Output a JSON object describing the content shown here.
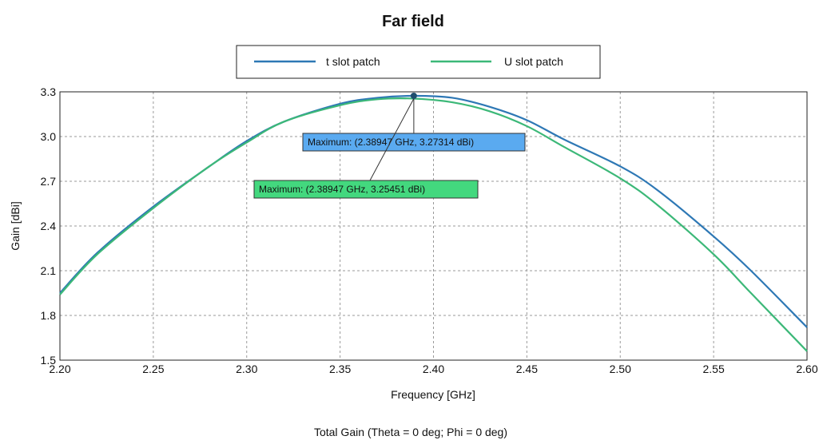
{
  "chart_data": {
    "type": "line",
    "title": "Far field",
    "xlabel": "Frequency [GHz]",
    "ylabel": "Gain [dBi]",
    "caption": "Total Gain (Theta = 0 deg; Phi = 0 deg)",
    "xlim": [
      2.2,
      2.6
    ],
    "ylim": [
      1.5,
      3.3
    ],
    "xticks": [
      "2.20",
      "2.25",
      "2.30",
      "2.35",
      "2.40",
      "2.45",
      "2.50",
      "2.55",
      "2.60"
    ],
    "yticks": [
      "1.5",
      "1.8",
      "2.1",
      "2.4",
      "2.7",
      "3.0",
      "3.3"
    ],
    "grid": true,
    "legend_position": "top-center",
    "x": [
      2.2,
      2.22,
      2.25,
      2.28,
      2.3,
      2.32,
      2.35,
      2.37,
      2.38947,
      2.41,
      2.43,
      2.45,
      2.47,
      2.5,
      2.52,
      2.55,
      2.57,
      2.6
    ],
    "series": [
      {
        "name": "t slot patch",
        "color": "#2e78b5",
        "values": [
          1.95,
          2.22,
          2.53,
          2.8,
          2.97,
          3.1,
          3.22,
          3.26,
          3.27314,
          3.26,
          3.2,
          3.11,
          2.98,
          2.8,
          2.64,
          2.33,
          2.1,
          1.72
        ]
      },
      {
        "name": "U slot patch",
        "color": "#3cb878",
        "values": [
          1.94,
          2.21,
          2.52,
          2.8,
          2.96,
          3.1,
          3.21,
          3.25,
          3.25451,
          3.23,
          3.17,
          3.07,
          2.93,
          2.72,
          2.54,
          2.21,
          1.95,
          1.56
        ]
      }
    ],
    "annotations": [
      {
        "text": "Maximum: (2.38947 GHz, 3.27314 dBi)",
        "series": 0,
        "x": 2.38947,
        "y": 3.27314,
        "color": "#5aaaf0"
      },
      {
        "text": "Maximum: (2.38947 GHz, 3.25451 dBi)",
        "series": 1,
        "x": 2.38947,
        "y": 3.25451,
        "color": "#43d87e"
      }
    ]
  }
}
